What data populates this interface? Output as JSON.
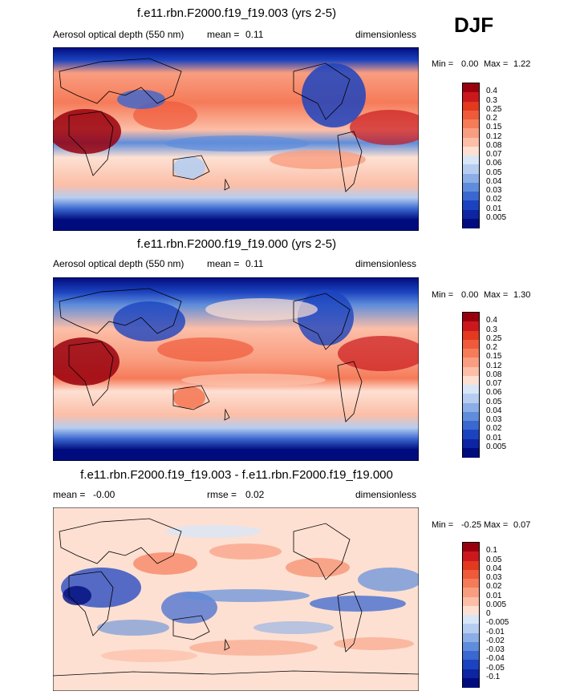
{
  "season": "DJF",
  "panels": [
    {
      "title": "f.e11.rbn.F2000.f19_f19.003 (yrs 2-5)",
      "left_label": "Aerosol optical depth (550 nm)",
      "stat_label": "mean =",
      "stat_value": "0.11",
      "units": "dimensionless",
      "min_label": "Min =",
      "min_value": "0.00",
      "max_label": "Max =",
      "max_value": "1.22",
      "levels": [
        "0.4",
        "0.3",
        "0.25",
        "0.2",
        "0.15",
        "0.12",
        "0.08",
        "0.07",
        "0.06",
        "0.05",
        "0.04",
        "0.03",
        "0.02",
        "0.01",
        "0.005"
      ]
    },
    {
      "title": "f.e11.rbn.F2000.f19_f19.000 (yrs 2-5)",
      "left_label": "Aerosol optical depth (550 nm)",
      "stat_label": "mean =",
      "stat_value": "0.11",
      "units": "dimensionless",
      "min_label": "Min =",
      "min_value": "0.00",
      "max_label": "Max =",
      "max_value": "1.30",
      "levels": [
        "0.4",
        "0.3",
        "0.25",
        "0.2",
        "0.15",
        "0.12",
        "0.08",
        "0.07",
        "0.06",
        "0.05",
        "0.04",
        "0.03",
        "0.02",
        "0.01",
        "0.005"
      ]
    },
    {
      "title": "f.e11.rbn.F2000.f19_f19.003 - f.e11.rbn.F2000.f19_f19.000",
      "left_label": "mean =",
      "left_value": "-0.00",
      "stat_label": "rmse =",
      "stat_value": "0.02",
      "units": "dimensionless",
      "min_label": "Min =",
      "min_value": "-0.25",
      "max_label": "Max =",
      "max_value": "0.07",
      "levels": [
        "0.1",
        "0.05",
        "0.04",
        "0.03",
        "0.02",
        "0.01",
        "0.005",
        "0",
        "-0.005",
        "-0.01",
        "-0.02",
        "-0.03",
        "-0.04",
        "-0.05",
        "-0.1"
      ]
    }
  ],
  "colors": {
    "scale": [
      "#99000d",
      "#cb181d",
      "#e2391f",
      "#ef5a3a",
      "#f57b59",
      "#f99d80",
      "#fcbea7",
      "#fde0d2",
      "#d9e6f7",
      "#b6cdf0",
      "#8caee6",
      "#5f8ddb",
      "#3a67d0",
      "#1c43bf",
      "#0d24a3",
      "#000c7d"
    ],
    "land_outline": "#000000"
  }
}
